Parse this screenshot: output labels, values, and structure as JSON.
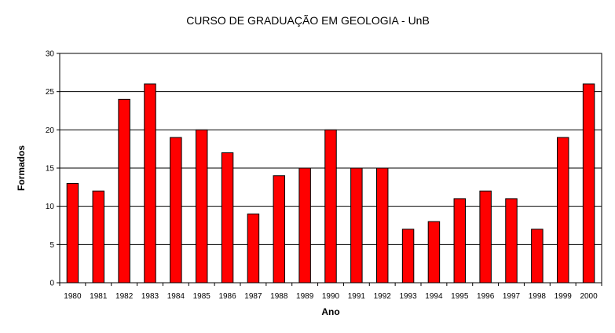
{
  "chart_data": {
    "type": "bar",
    "title": "CURSO DE GRADUAÇÃO EM GEOLOGIA - UnB",
    "xlabel": "Ano",
    "ylabel": "Formados",
    "ylim": [
      0,
      30
    ],
    "yticks": [
      0,
      5,
      10,
      15,
      20,
      25,
      30
    ],
    "grid": true,
    "legend": "none",
    "bar_color": "#ff0000",
    "categories": [
      "1980",
      "1981",
      "1982",
      "1983",
      "1984",
      "1985",
      "1986",
      "1987",
      "1988",
      "1989",
      "1990",
      "1991",
      "1992",
      "1993",
      "1994",
      "1995",
      "1996",
      "1997",
      "1998",
      "1999",
      "2000"
    ],
    "values": [
      13,
      12,
      24,
      26,
      19,
      20,
      17,
      9,
      14,
      15,
      20,
      15,
      15,
      7,
      8,
      11,
      12,
      11,
      7,
      19,
      26
    ]
  }
}
